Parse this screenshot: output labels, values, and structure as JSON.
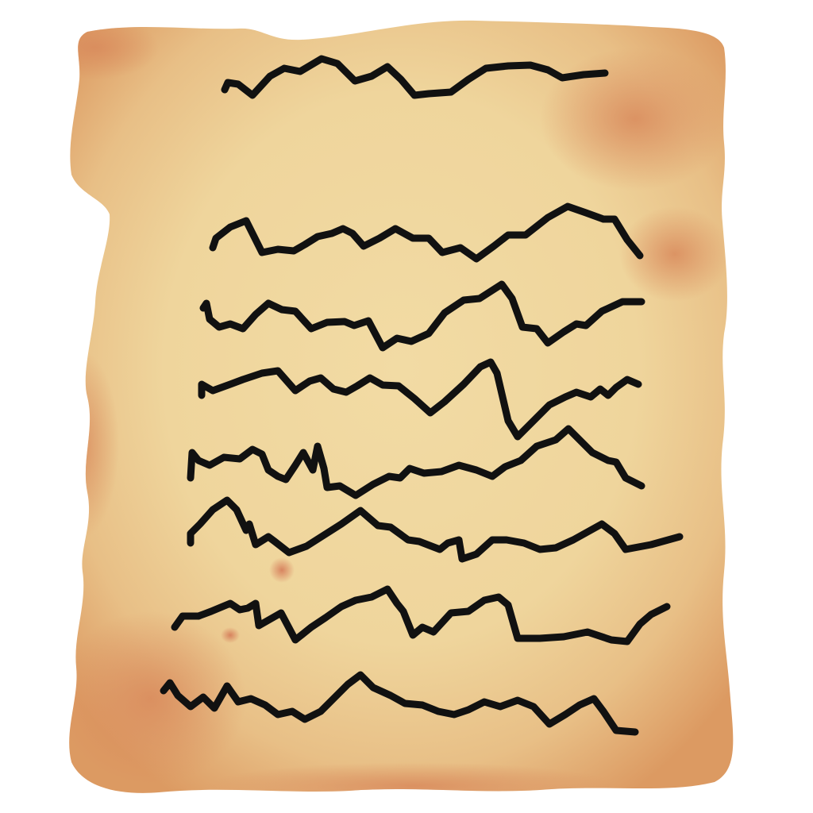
{
  "illustration": {
    "subject": "parchment-scroll-icon",
    "colors": {
      "paper_light": "#f0d8a0",
      "paper_mid": "#ecc990",
      "paper_edge": "#dc9a62",
      "stain": "#d98a5c",
      "ink": "#111111"
    },
    "scribble_line_count": 8
  }
}
